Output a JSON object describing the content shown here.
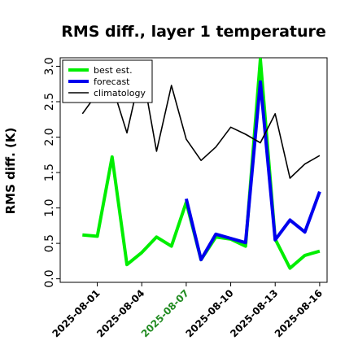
{
  "chart_data": {
    "type": "line",
    "title": "RMS diff., layer 1 temperature",
    "xlabel": "",
    "ylabel": "RMS diff. (K)",
    "ylim": [
      -0.05,
      3.12
    ],
    "yticks": [
      0.0,
      0.5,
      1.0,
      1.5,
      2.0,
      2.5,
      3.0
    ],
    "ytick_labels": [
      "0.0",
      "0.5",
      "1.0",
      "1.5",
      "2.0",
      "2.5",
      "3.0"
    ],
    "x_index_range": [
      -1.5,
      16.5
    ],
    "xticks": [
      {
        "index": 1,
        "label": "2025-08-01",
        "color": "#000000"
      },
      {
        "index": 4,
        "label": "2025-08-04",
        "color": "#000000"
      },
      {
        "index": 7,
        "label": "2025-08-07",
        "color": "#228B22"
      },
      {
        "index": 10,
        "label": "2025-08-10",
        "color": "#000000"
      },
      {
        "index": 13,
        "label": "2025-08-13",
        "color": "#000000"
      },
      {
        "index": 16,
        "label": "2025-08-16",
        "color": "#000000"
      }
    ],
    "x_dates": [
      "2025-07-31",
      "2025-08-01",
      "2025-08-02",
      "2025-08-03",
      "2025-08-04",
      "2025-08-05",
      "2025-08-06",
      "2025-08-07",
      "2025-08-08",
      "2025-08-09",
      "2025-08-10",
      "2025-08-11",
      "2025-08-12",
      "2025-08-13",
      "2025-08-14",
      "2025-08-15",
      "2025-08-16"
    ],
    "grid": false,
    "legend_position": "top-left",
    "series": [
      {
        "name": "best est.",
        "color": "#00ee00",
        "width": 4,
        "x_index": [
          0,
          1,
          2,
          3,
          4,
          5,
          6,
          7,
          8,
          9,
          10,
          11,
          12,
          13,
          14,
          15,
          16
        ],
        "values": [
          0.62,
          0.6,
          1.72,
          0.2,
          0.37,
          0.59,
          0.46,
          1.08,
          0.27,
          0.59,
          0.56,
          0.46,
          3.1,
          0.56,
          0.15,
          0.33,
          0.39
        ]
      },
      {
        "name": "forecast",
        "color": "#0000ee",
        "width": 4,
        "x_index": [
          7,
          8,
          9,
          10,
          11,
          12,
          13,
          14,
          15,
          16
        ],
        "values": [
          1.13,
          0.27,
          0.63,
          0.57,
          0.51,
          2.78,
          0.55,
          0.83,
          0.66,
          1.23
        ]
      },
      {
        "name": "climatology",
        "color": "#000000",
        "width": 1.6,
        "x_index": [
          0,
          1,
          2,
          3,
          4,
          5,
          6,
          7,
          8,
          9,
          10,
          11,
          12,
          13,
          14,
          15,
          16
        ],
        "values": [
          2.33,
          2.62,
          2.73,
          2.06,
          2.98,
          1.8,
          2.73,
          1.97,
          1.67,
          1.86,
          2.14,
          2.04,
          1.92,
          2.33,
          1.42,
          1.62,
          1.74
        ]
      }
    ]
  }
}
